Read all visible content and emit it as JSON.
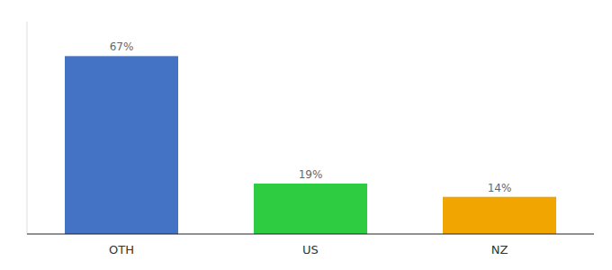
{
  "chart_data": {
    "type": "bar",
    "categories": [
      "OTH",
      "US",
      "NZ"
    ],
    "values": [
      67,
      19,
      14
    ],
    "value_labels": [
      "67%",
      "19%",
      "14%"
    ],
    "colors": [
      "#4472c4",
      "#2ecc40",
      "#f0a500"
    ],
    "ylim": [
      0,
      80
    ],
    "data_labels": true,
    "tick_labels": "x"
  }
}
